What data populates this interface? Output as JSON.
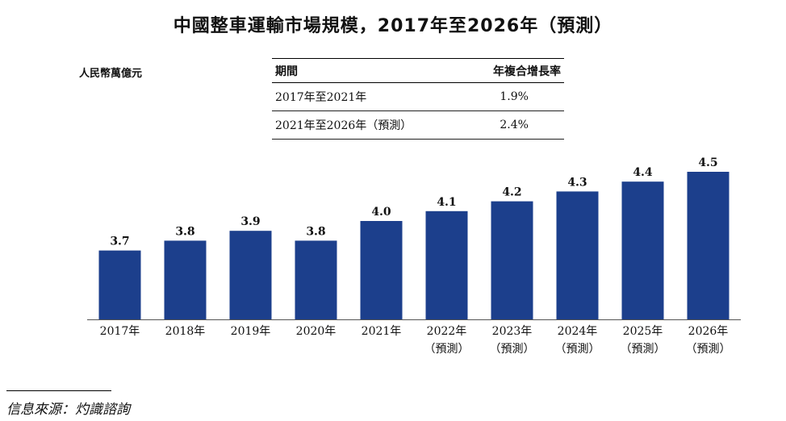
{
  "title": "中國整車運輸市場規模，2017年至2026年（預測）",
  "unit_label": "人民幣萬億元",
  "cagr_table": {
    "headers": [
      "期間",
      "年複合增長率"
    ],
    "rows": [
      {
        "period": "2017年至2021年",
        "rate": "1.9%"
      },
      {
        "period": "2021年至2026年（預測）",
        "rate": "2.4%"
      }
    ]
  },
  "chart_data": {
    "type": "bar",
    "categories": [
      "2017年",
      "2018年",
      "2019年",
      "2020年",
      "2021年",
      "2022年",
      "2023年",
      "2024年",
      "2025年",
      "2026年"
    ],
    "category_sublabels": [
      "",
      "",
      "",
      "",
      "",
      "（預測）",
      "（預測）",
      "（預測）",
      "（預測）",
      "（預測）"
    ],
    "values": [
      3.7,
      3.8,
      3.9,
      3.8,
      4.0,
      4.1,
      4.2,
      4.3,
      4.4,
      4.5
    ],
    "data_labels": [
      "3.7",
      "3.8",
      "3.9",
      "3.8",
      "4.0",
      "4.1",
      "4.2",
      "4.3",
      "4.4",
      "4.5"
    ],
    "bar_color": "#1c3f8c",
    "ylabel": "人民幣萬億元",
    "grid": false
  },
  "source": "信息來源：灼識諮詢"
}
